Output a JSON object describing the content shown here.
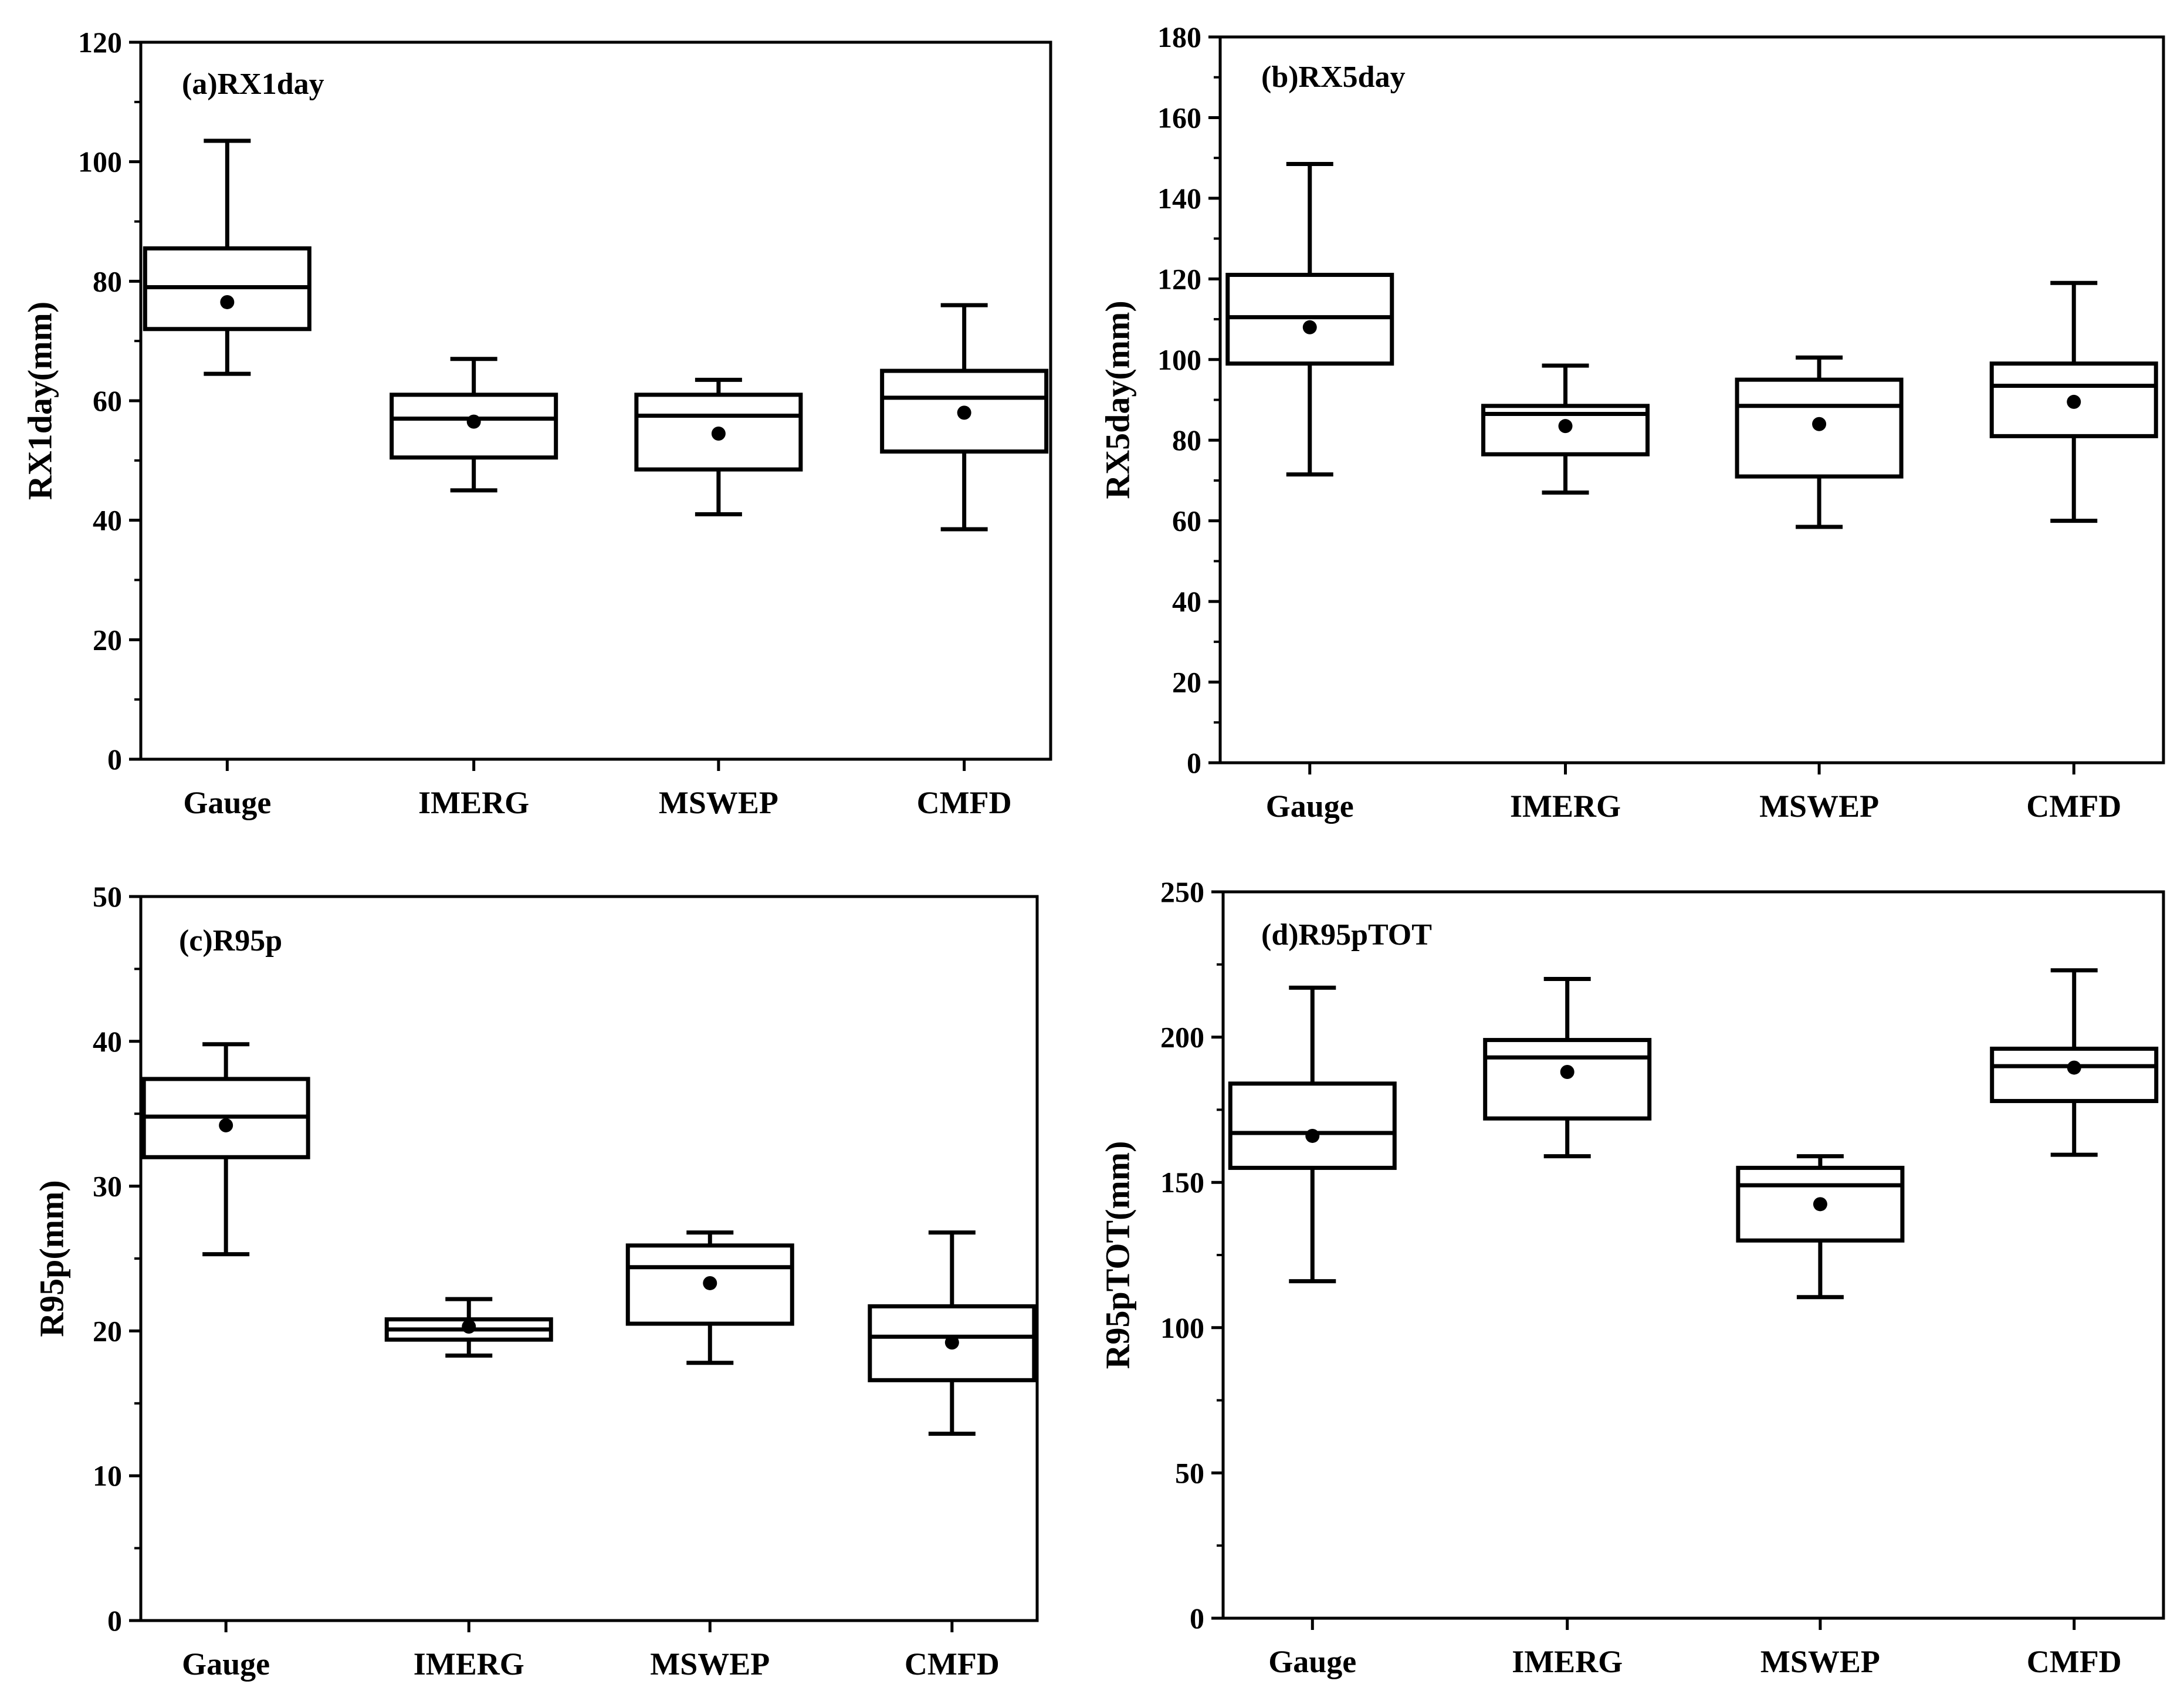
{
  "chart_data": [
    {
      "type": "box",
      "title": "(a)RX1day",
      "xlabel": "",
      "ylabel": "RX1day(mm)",
      "ylim": [
        0,
        120
      ],
      "yticks": [
        0,
        20,
        40,
        60,
        80,
        100,
        120
      ],
      "categories": [
        "Gauge",
        "IMERG",
        "MSWEP",
        "CMFD"
      ],
      "boxes": [
        {
          "whisker_low": 64.5,
          "q1": 72,
          "median": 79,
          "q3": 85.5,
          "whisker_high": 103.5,
          "mean": 76.5
        },
        {
          "whisker_low": 45,
          "q1": 50.5,
          "median": 57,
          "q3": 61,
          "whisker_high": 67,
          "mean": 56.5
        },
        {
          "whisker_low": 41,
          "q1": 48.5,
          "median": 57.5,
          "q3": 61,
          "whisker_high": 63.5,
          "mean": 54.5
        },
        {
          "whisker_low": 38.5,
          "q1": 51.5,
          "median": 60.5,
          "q3": 65,
          "whisker_high": 76,
          "mean": 58
        }
      ]
    },
    {
      "type": "box",
      "title": "(b)RX5day",
      "xlabel": "",
      "ylabel": "RX5day(mm)",
      "ylim": [
        0,
        180
      ],
      "yticks": [
        0,
        20,
        40,
        60,
        80,
        100,
        120,
        140,
        160,
        180
      ],
      "categories": [
        "Gauge",
        "IMERG",
        "MSWEP",
        "CMFD"
      ],
      "boxes": [
        {
          "whisker_low": 71.5,
          "q1": 99,
          "median": 110.5,
          "q3": 121,
          "whisker_high": 148.5,
          "mean": 108
        },
        {
          "whisker_low": 67,
          "q1": 76.5,
          "median": 86.5,
          "q3": 88.5,
          "whisker_high": 98.5,
          "mean": 83.5
        },
        {
          "whisker_low": 58.5,
          "q1": 71,
          "median": 88.5,
          "q3": 95,
          "whisker_high": 100.5,
          "mean": 84
        },
        {
          "whisker_low": 60,
          "q1": 81,
          "median": 93.5,
          "q3": 99,
          "whisker_high": 119,
          "mean": 89.5
        }
      ]
    },
    {
      "type": "box",
      "title": "(c)R95p",
      "xlabel": "",
      "ylabel": "R95p(mm)",
      "ylim": [
        0,
        50
      ],
      "yticks": [
        0,
        10,
        20,
        30,
        40,
        50
      ],
      "categories": [
        "Gauge",
        "IMERG",
        "MSWEP",
        "CMFD"
      ],
      "boxes": [
        {
          "whisker_low": 25.3,
          "q1": 32,
          "median": 34.8,
          "q3": 37.4,
          "whisker_high": 39.8,
          "mean": 34.2
        },
        {
          "whisker_low": 18.3,
          "q1": 19.4,
          "median": 20.1,
          "q3": 20.8,
          "whisker_high": 22.2,
          "mean": 20.3
        },
        {
          "whisker_low": 17.8,
          "q1": 20.5,
          "median": 24.4,
          "q3": 25.9,
          "whisker_high": 26.8,
          "mean": 23.3
        },
        {
          "whisker_low": 12.9,
          "q1": 16.6,
          "median": 19.6,
          "q3": 21.7,
          "whisker_high": 26.8,
          "mean": 19.2
        }
      ]
    },
    {
      "type": "box",
      "title": "(d)R95pTOT",
      "xlabel": "",
      "ylabel": "R95pTOT(mm)",
      "ylim": [
        0,
        250
      ],
      "yticks": [
        0,
        50,
        100,
        150,
        200,
        250
      ],
      "categories": [
        "Gauge",
        "IMERG",
        "MSWEP",
        "CMFD"
      ],
      "boxes": [
        {
          "whisker_low": 116,
          "q1": 155,
          "median": 167,
          "q3": 184,
          "whisker_high": 217,
          "mean": 166
        },
        {
          "whisker_low": 159,
          "q1": 172,
          "median": 193,
          "q3": 199,
          "whisker_high": 220,
          "mean": 188
        },
        {
          "whisker_low": 110.5,
          "q1": 130,
          "median": 149,
          "q3": 155,
          "whisker_high": 159,
          "mean": 142.5
        },
        {
          "whisker_low": 159.5,
          "q1": 178,
          "median": 190,
          "q3": 196,
          "whisker_high": 223,
          "mean": 189.5
        }
      ]
    }
  ]
}
